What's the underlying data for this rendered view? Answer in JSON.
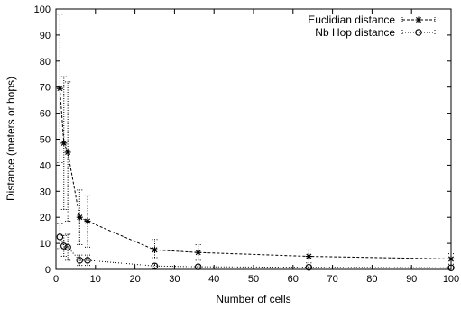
{
  "chart_data": {
    "type": "line",
    "title": "",
    "xlabel": "Number of cells",
    "ylabel": "Distance (meters or hops)",
    "xlim": [
      0,
      100
    ],
    "ylim": [
      0,
      100
    ],
    "xticks": [
      "0",
      "10",
      "20",
      "30",
      "40",
      "50",
      "60",
      "70",
      "80",
      "90",
      "100"
    ],
    "yticks": [
      "0",
      "10",
      "20",
      "30",
      "40",
      "50",
      "60",
      "70",
      "80",
      "90",
      "100"
    ],
    "grid": false,
    "legend_position": "top-right",
    "series": [
      {
        "name": "Euclidian distance",
        "marker": "asterisk",
        "line_style": "dashed",
        "color": "#000000",
        "points": [
          {
            "x": 1,
            "y": 69.5,
            "lo": 41,
            "hi": 98
          },
          {
            "x": 2,
            "y": 48.5,
            "lo": 23,
            "hi": 74
          },
          {
            "x": 3,
            "y": 45,
            "lo": 18.5,
            "hi": 72
          },
          {
            "x": 6,
            "y": 20,
            "lo": 9.5,
            "hi": 30.5
          },
          {
            "x": 8,
            "y": 18.5,
            "lo": 8.5,
            "hi": 28.5
          },
          {
            "x": 25,
            "y": 7.5,
            "lo": 4.5,
            "hi": 11.5
          },
          {
            "x": 36,
            "y": 6.5,
            "lo": 3.5,
            "hi": 9.5
          },
          {
            "x": 64,
            "y": 5,
            "lo": 2.5,
            "hi": 7.5
          },
          {
            "x": 100,
            "y": 4,
            "lo": 2,
            "hi": 6
          }
        ]
      },
      {
        "name": "Nb Hop distance",
        "marker": "circle",
        "line_style": "dotted",
        "color": "#000000",
        "points": [
          {
            "x": 1,
            "y": 12.5,
            "lo": 8,
            "hi": 17.5
          },
          {
            "x": 2,
            "y": 9,
            "lo": 5,
            "hi": 13
          },
          {
            "x": 3,
            "y": 8.5,
            "lo": 3.5,
            "hi": 13.5
          },
          {
            "x": 6,
            "y": 3.5,
            "lo": 1.5,
            "hi": 5.5
          },
          {
            "x": 8,
            "y": 3.5,
            "lo": 1.5,
            "hi": 5.5
          },
          {
            "x": 25,
            "y": 1.3,
            "lo": 0.5,
            "hi": 2
          },
          {
            "x": 36,
            "y": 1,
            "lo": 0.4,
            "hi": 1.6
          },
          {
            "x": 64,
            "y": 0.8,
            "lo": 0.3,
            "hi": 1.2
          },
          {
            "x": 100,
            "y": 0.6,
            "lo": 0.2,
            "hi": 1
          }
        ]
      }
    ]
  }
}
